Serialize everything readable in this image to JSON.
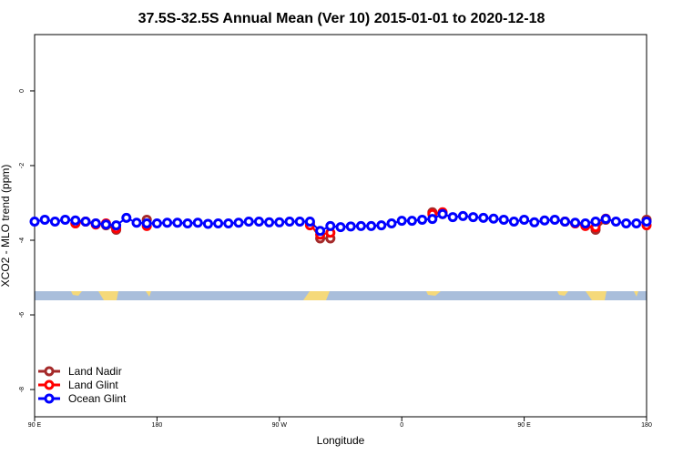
{
  "chart_data": {
    "type": "line",
    "title": "37.5S-32.5S Annual Mean (Ver 10)   2015-01-01 to 2020-12-18",
    "x_label": "Longitude",
    "y_label": "XCO2 - MLO trend (ppm)",
    "x": [
      90,
      97.5,
      105,
      112.5,
      120,
      127.5,
      135,
      142.5,
      150,
      157.5,
      165,
      172.5,
      180,
      187.5,
      195,
      202.5,
      210,
      217.5,
      225,
      232.5,
      240,
      247.5,
      255,
      262.5,
      270,
      277.5,
      285,
      292.5,
      300,
      307.5,
      315,
      322.5,
      330,
      337.5,
      345,
      352.5,
      360,
      367.5,
      375,
      382.5,
      390,
      397.5,
      405,
      412.5,
      420,
      427.5,
      435,
      442.5,
      450,
      457.5,
      465,
      472.5,
      480,
      487.5,
      495,
      502.5,
      510,
      517.5,
      525,
      532.5,
      540
    ],
    "xlim": [
      90,
      540
    ],
    "xticks": [
      {
        "value": 90,
        "label": "90 E"
      },
      180,
      {
        "value": 270,
        "label": "90 W"
      },
      {
        "value": 360,
        "label": "0"
      },
      {
        "value": 450,
        "label": "90 E"
      },
      {
        "value": 540,
        "label": "180"
      }
    ],
    "ylim": [
      -8.73,
      1.51
    ],
    "yticks": [
      0,
      -2,
      -4,
      -6,
      -8
    ],
    "legend_position": "bottom-left",
    "series": [
      {
        "name": "Land Nadir",
        "color": "#a52a2a",
        "values": [
          null,
          null,
          null,
          null,
          -3.55,
          -3.5,
          -3.55,
          -3.6,
          -3.72,
          null,
          null,
          -3.45,
          null,
          null,
          null,
          null,
          null,
          null,
          null,
          null,
          null,
          null,
          null,
          null,
          null,
          null,
          null,
          -3.55,
          -3.95,
          -3.95,
          null,
          null,
          null,
          null,
          null,
          null,
          null,
          null,
          null,
          -3.25,
          -3.3,
          null,
          null,
          null,
          null,
          null,
          null,
          null,
          null,
          null,
          null,
          null,
          -3.5,
          -3.55,
          -3.6,
          -3.72,
          -3.45,
          null,
          null,
          null,
          -3.45
        ]
      },
      {
        "name": "Land Glint",
        "color": "#ff0000",
        "values": [
          null,
          null,
          null,
          null,
          -3.55,
          -3.5,
          -3.58,
          -3.55,
          -3.68,
          null,
          null,
          -3.62,
          null,
          null,
          null,
          null,
          null,
          null,
          null,
          null,
          null,
          null,
          null,
          null,
          null,
          null,
          null,
          -3.6,
          -3.85,
          -3.8,
          null,
          null,
          null,
          null,
          null,
          null,
          null,
          null,
          null,
          -3.3,
          -3.25,
          null,
          null,
          null,
          null,
          null,
          null,
          null,
          null,
          null,
          null,
          null,
          -3.5,
          -3.55,
          -3.62,
          -3.65,
          -3.42,
          null,
          null,
          null,
          -3.6
        ]
      },
      {
        "name": "Ocean Glint",
        "color": "#0000ff",
        "values": [
          -3.5,
          -3.45,
          -3.5,
          -3.45,
          -3.47,
          -3.5,
          -3.55,
          -3.58,
          -3.6,
          -3.4,
          -3.53,
          -3.55,
          -3.55,
          -3.53,
          -3.53,
          -3.55,
          -3.53,
          -3.56,
          -3.55,
          -3.55,
          -3.53,
          -3.5,
          -3.5,
          -3.52,
          -3.52,
          -3.5,
          -3.5,
          -3.5,
          -3.75,
          -3.62,
          -3.65,
          -3.63,
          -3.62,
          -3.62,
          -3.6,
          -3.55,
          -3.48,
          -3.48,
          -3.45,
          -3.43,
          -3.3,
          -3.38,
          -3.35,
          -3.38,
          -3.4,
          -3.42,
          -3.45,
          -3.5,
          -3.45,
          -3.52,
          -3.47,
          -3.45,
          -3.5,
          -3.53,
          -3.55,
          -3.5,
          -3.43,
          -3.5,
          -3.55,
          -3.55,
          -3.5
        ]
      }
    ]
  }
}
